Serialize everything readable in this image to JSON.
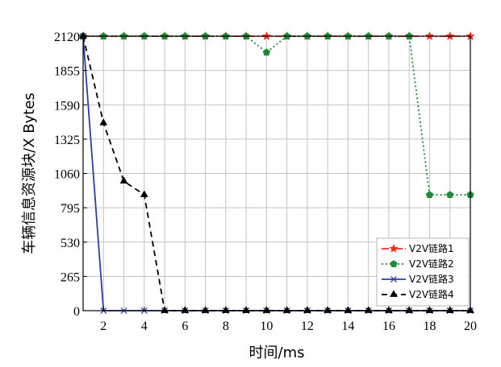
{
  "chart_data": {
    "type": "line",
    "title": "",
    "xlabel": "时间/ms",
    "ylabel": "车辆信息资源块/X Bytes",
    "xlim": [
      1,
      20
    ],
    "ylim": [
      0,
      2120
    ],
    "xticks": [
      2,
      4,
      6,
      8,
      10,
      12,
      14,
      16,
      18,
      20
    ],
    "yticks": [
      0,
      265,
      530,
      795,
      1060,
      1325,
      1590,
      1855,
      2120
    ],
    "grid": true,
    "legend_position": "bottom-right",
    "x": [
      1,
      2,
      3,
      4,
      5,
      6,
      7,
      8,
      9,
      10,
      11,
      12,
      13,
      14,
      15,
      16,
      17,
      18,
      19,
      20
    ],
    "series": [
      {
        "name": "V2V链路1",
        "color": "#ff2a1a",
        "line_style": "dash-dot",
        "marker": "star",
        "values": [
          2120,
          2120,
          2120,
          2120,
          2120,
          2120,
          2120,
          2120,
          2120,
          2120,
          2120,
          2120,
          2120,
          2120,
          2120,
          2120,
          2120,
          2120,
          2120,
          2120
        ]
      },
      {
        "name": "V2V链路2",
        "color": "#1f8a3a",
        "line_style": "dotted",
        "marker": "pentagon",
        "values": [
          2120,
          2120,
          2120,
          2120,
          2120,
          2120,
          2120,
          2120,
          2120,
          1995,
          2120,
          2120,
          2120,
          2120,
          2120,
          2120,
          2120,
          895,
          895,
          895
        ]
      },
      {
        "name": "V2V链路3",
        "color": "#2b3f9e",
        "line_style": "solid",
        "marker": "x",
        "values": [
          2120,
          0,
          0,
          0,
          0,
          0,
          0,
          0,
          0,
          0,
          0,
          0,
          0,
          0,
          0,
          0,
          0,
          0,
          0,
          0
        ]
      },
      {
        "name": "V2V链路4",
        "color": "#000000",
        "line_style": "dashed",
        "marker": "triangle",
        "values": [
          2120,
          1450,
          1000,
          895,
          0,
          0,
          0,
          0,
          0,
          0,
          0,
          0,
          0,
          0,
          0,
          0,
          0,
          0,
          0,
          0
        ]
      }
    ]
  }
}
